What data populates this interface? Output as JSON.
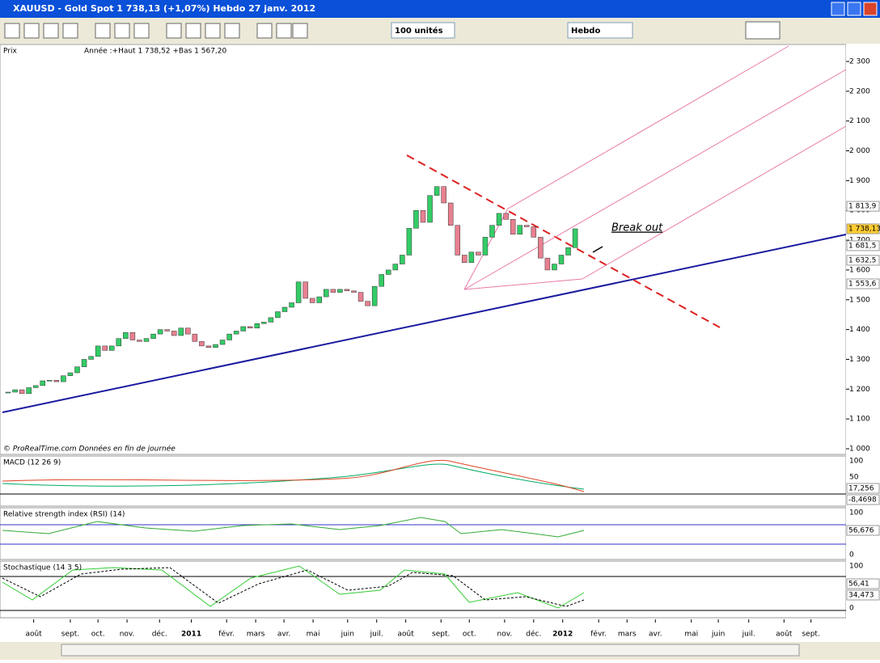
{
  "window": {
    "title": "XAUUSD - Gold Spot    1 738,13 (+1,07%)    Hebdo   27 janv. 2012"
  },
  "toolbar": {
    "quantity": "100 unités",
    "period": "Hebdo"
  },
  "chart_data": {
    "type": "candlestick",
    "panel_label": "Prix",
    "info": "Année :+Haut 1 738,52 +Bas 1 567,20",
    "footer": "© ProRealTime.com  Données en fin de journée",
    "annotation": "Break out",
    "up_color": "#33cc66",
    "down_color": "#e88090",
    "close": [
      1190,
      1198,
      1185,
      1205,
      1212,
      1228,
      1230,
      1225,
      1245,
      1255,
      1275,
      1300,
      1310,
      1345,
      1330,
      1345,
      1370,
      1390,
      1365,
      1360,
      1370,
      1385,
      1400,
      1395,
      1380,
      1405,
      1385,
      1360,
      1345,
      1340,
      1350,
      1365,
      1385,
      1395,
      1410,
      1405,
      1420,
      1425,
      1440,
      1460,
      1475,
      1490,
      1560,
      1505,
      1490,
      1510,
      1535,
      1525,
      1535,
      1530,
      1525,
      1495,
      1480,
      1545,
      1585,
      1600,
      1620,
      1650,
      1740,
      1800,
      1760,
      1850,
      1880,
      1825,
      1750,
      1650,
      1625,
      1660,
      1650,
      1710,
      1750,
      1790,
      1770,
      1720,
      1750,
      1745,
      1710,
      1640,
      1600,
      1620,
      1650,
      1675,
      1738.13
    ],
    "xlim": [
      0,
      120
    ],
    "xticks": [
      {
        "value": 3.7,
        "label": "août"
      },
      {
        "value": 9,
        "label": "sept."
      },
      {
        "value": 13,
        "label": "oct."
      },
      {
        "value": 17.2,
        "label": "nov."
      },
      {
        "value": 21.9,
        "label": "déc."
      },
      {
        "value": 26.5,
        "label": "2011"
      },
      {
        "value": 31.6,
        "label": "févr."
      },
      {
        "value": 35.8,
        "label": "mars"
      },
      {
        "value": 39.9,
        "label": "avr."
      },
      {
        "value": 44.1,
        "label": "mai"
      },
      {
        "value": 49.1,
        "label": "juin"
      },
      {
        "value": 53.3,
        "label": "juil."
      },
      {
        "value": 57.5,
        "label": "août"
      },
      {
        "value": 62.6,
        "label": "sept."
      },
      {
        "value": 66.7,
        "label": "oct."
      },
      {
        "value": 71.8,
        "label": "nov."
      },
      {
        "value": 76,
        "label": "déc."
      },
      {
        "value": 80.2,
        "label": "2012"
      },
      {
        "value": 85.4,
        "label": "févr."
      },
      {
        "value": 89.5,
        "label": "mars"
      },
      {
        "value": 93.6,
        "label": "avr."
      },
      {
        "value": 98.8,
        "label": "mai"
      },
      {
        "value": 102.7,
        "label": "juin"
      },
      {
        "value": 107.1,
        "label": "juil."
      },
      {
        "value": 112.2,
        "label": "août"
      },
      {
        "value": 116.1,
        "label": "sept."
      }
    ],
    "ylim": [
      1000,
      2300
    ],
    "yticks": [
      {
        "value": 1000,
        "label": "1 000"
      },
      {
        "value": 1100,
        "label": "1 100"
      },
      {
        "value": 1200,
        "label": "1 200"
      },
      {
        "value": 1300,
        "label": "1 300"
      },
      {
        "value": 1400,
        "label": "1 400"
      },
      {
        "value": 1500,
        "label": "1 500"
      },
      {
        "value": 1600,
        "label": "1 600"
      },
      {
        "value": 1700,
        "label": "1 700"
      },
      {
        "value": 1800,
        "label": "1 800"
      },
      {
        "value": 1900,
        "label": "1 900"
      },
      {
        "value": 2000,
        "label": "2 000"
      },
      {
        "value": 2100,
        "label": "2 100"
      },
      {
        "value": 2200,
        "label": "2 200"
      },
      {
        "value": 2300,
        "label": "2 300"
      }
    ],
    "last_values": [
      {
        "value": 1813.9,
        "label": "1 813,9",
        "color": "#ffffff"
      },
      {
        "value": 1738.13,
        "label": "1 738,13",
        "color": "#ffcc33"
      },
      {
        "value": 1681.5,
        "label": "1 681,5",
        "color": "#ffffff"
      },
      {
        "value": 1632.5,
        "label": "1 632,5",
        "color": "#ffffff"
      },
      {
        "value": 1553.6,
        "label": "1 553,6",
        "color": "#ffffff"
      }
    ]
  },
  "panels": [
    {
      "title": "MACD (12 26 9)",
      "ticks": [
        "100",
        "50"
      ],
      "values": [
        "17,256",
        "-8,4698"
      ]
    },
    {
      "title": "Relative strength index (RSI) (14)",
      "ticks": [
        "100",
        "0"
      ],
      "values": [
        "56,676"
      ]
    },
    {
      "title": "Stochastique (14 3 5)",
      "ticks": [
        "100",
        "0"
      ],
      "values": [
        "56,41",
        "34,473"
      ]
    }
  ]
}
